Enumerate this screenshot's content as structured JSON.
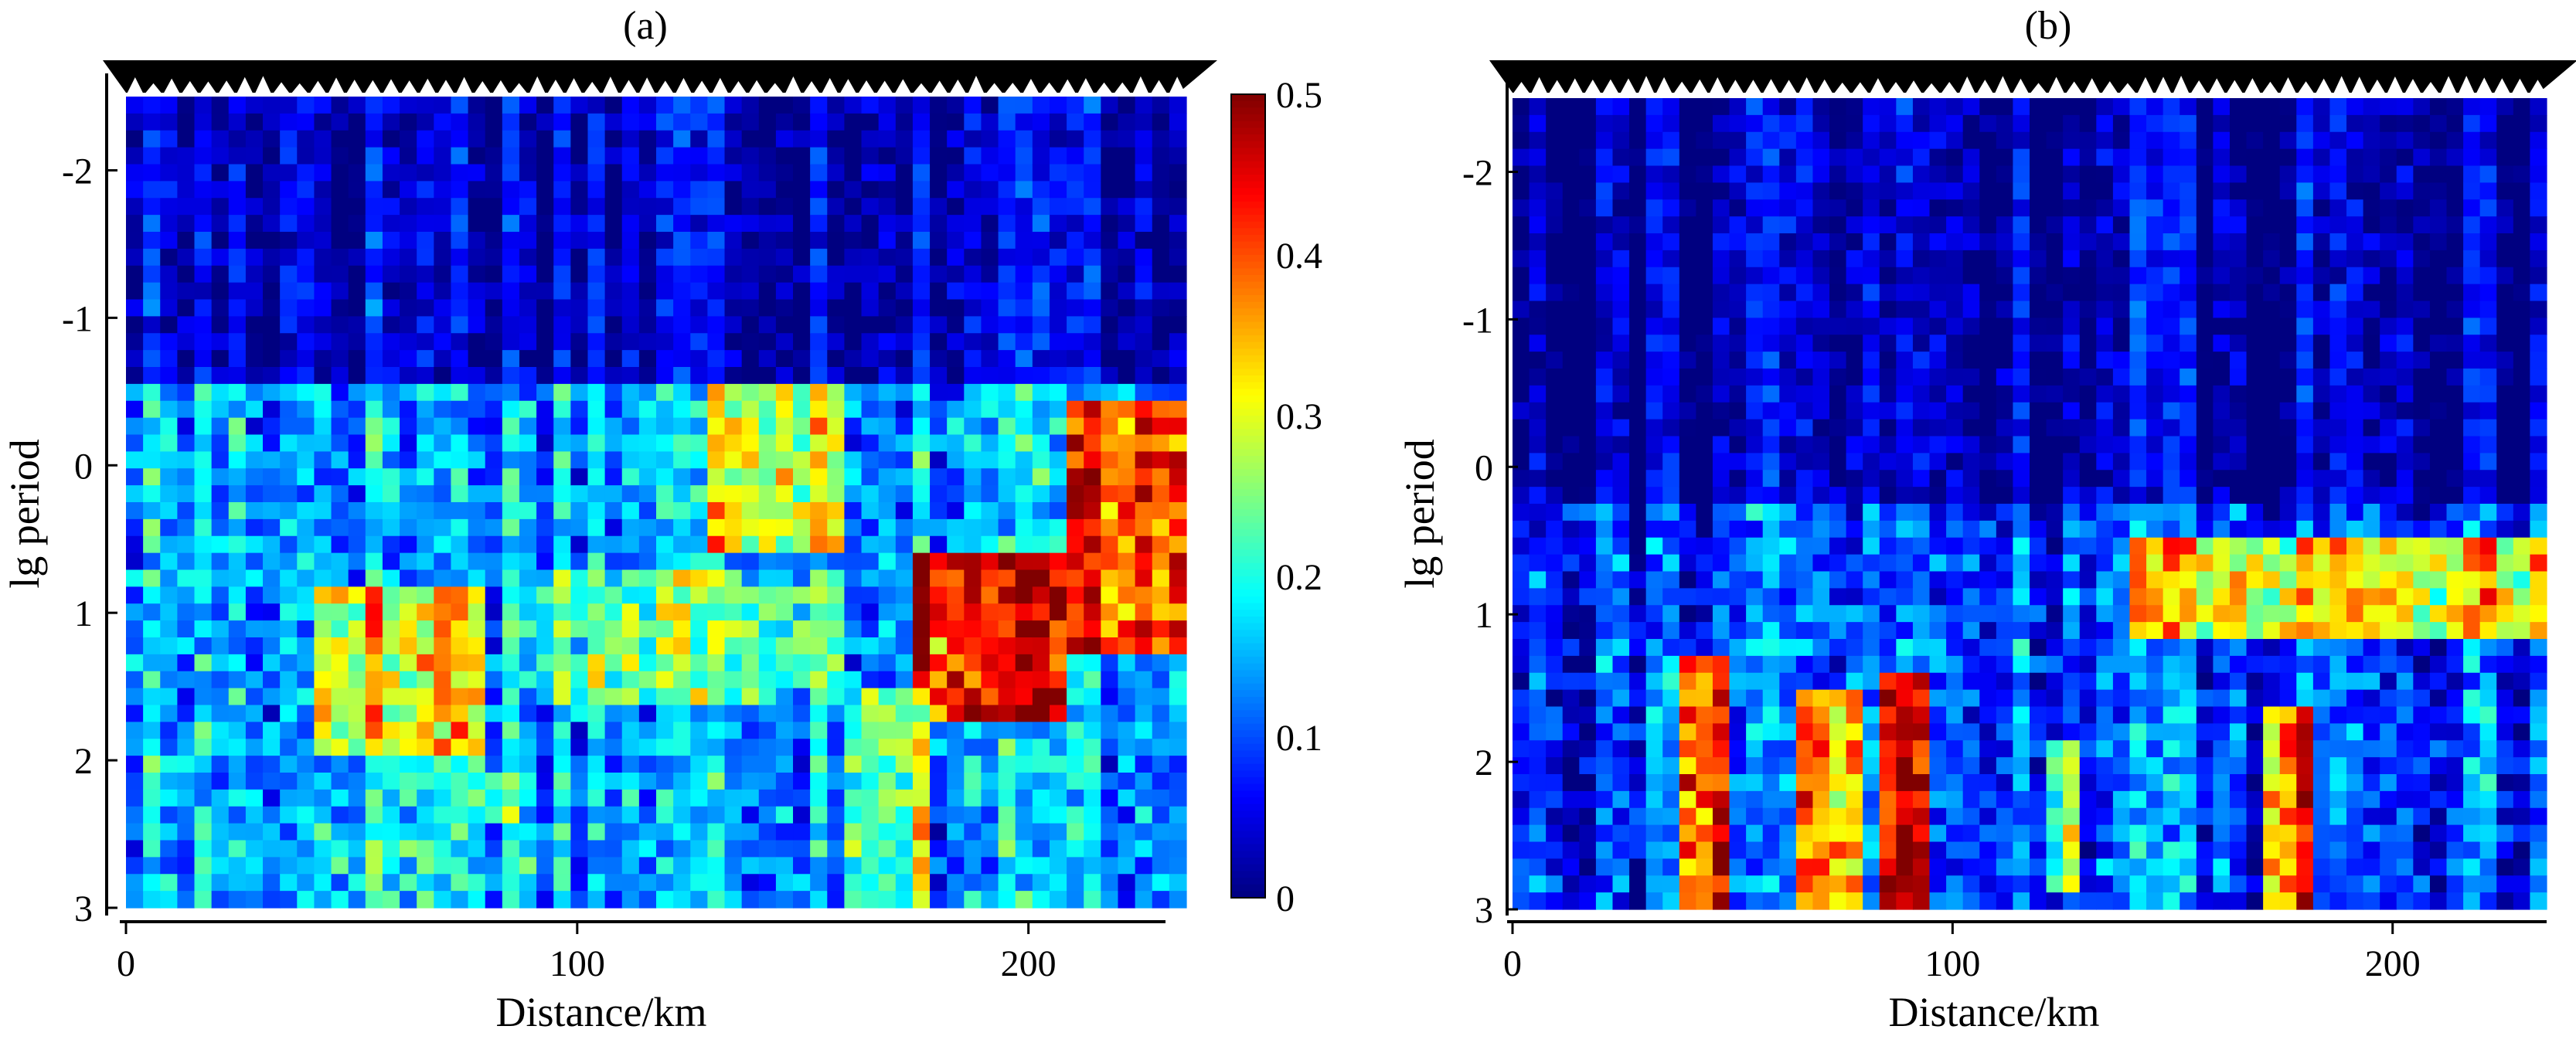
{
  "chart_data": [
    {
      "type": "heatmap",
      "panel_label": "(a)",
      "title": "",
      "xlabel": "Distance/km",
      "ylabel": "lg period",
      "xlim": [
        0,
        235
      ],
      "ylim": [
        -2.5,
        3
      ],
      "x_ticks": [
        0,
        100,
        200
      ],
      "y_ticks": [
        -2,
        -1,
        0,
        1,
        2,
        3
      ],
      "y_axis_inverted": true,
      "grid": false,
      "legend": "colorbar-right",
      "colorbar": {
        "range": [
          0,
          0.5
        ],
        "ticks": [
          0,
          0.1,
          0.2,
          0.3,
          0.4,
          0.5
        ],
        "colormap": "jet"
      },
      "stations_marker": "black-triangles-top",
      "grid_columns": 62,
      "grid_rows": 48,
      "value_features": [
        {
          "x": [
            175,
            210
          ],
          "y": [
            0.6,
            1.7
          ],
          "value": 0.5
        },
        {
          "x": [
            210,
            235
          ],
          "y": [
            -0.4,
            1.3
          ],
          "value": 0.48
        },
        {
          "x": [
            40,
            80
          ],
          "y": [
            0.8,
            2.2
          ],
          "value": 0.38
        },
        {
          "x": [
            130,
            160
          ],
          "y": [
            -0.5,
            0.6
          ],
          "value": 0.38
        },
        {
          "x": [
            160,
            180
          ],
          "y": [
            1.5,
            3.0
          ],
          "value": 0.33
        },
        {
          "x": [
            40,
            90
          ],
          "y": [
            2.0,
            3.0
          ],
          "value": 0.25
        },
        {
          "x": [
            90,
            160
          ],
          "y": [
            0.7,
            1.6
          ],
          "value": 0.3
        },
        {
          "x": [
            0,
            235
          ],
          "y": [
            -2.5,
            -0.6
          ],
          "value": 0.06
        }
      ],
      "value_range_background": [
        0.1,
        0.2
      ]
    },
    {
      "type": "heatmap",
      "panel_label": "(b)",
      "title": "",
      "xlabel": "Distance/km",
      "ylabel": "lg period",
      "xlim": [
        0,
        235
      ],
      "ylim": [
        -2.5,
        3
      ],
      "x_ticks": [
        0,
        100,
        200
      ],
      "y_ticks": [
        -2,
        -1,
        0,
        1,
        2,
        3
      ],
      "y_axis_inverted": true,
      "grid": false,
      "legend": "none",
      "colorbar": {
        "range": [
          0,
          0.5
        ],
        "colormap": "jet"
      },
      "stations_marker": "black-triangles-top",
      "grid_columns": 62,
      "grid_rows": 48,
      "value_features": [
        {
          "x": [
            37,
            48
          ],
          "y": [
            1.3,
            3.0
          ],
          "value": 0.5
        },
        {
          "x": [
            65,
            78
          ],
          "y": [
            1.5,
            3.0
          ],
          "value": 0.42
        },
        {
          "x": [
            82,
            95
          ],
          "y": [
            1.4,
            3.0
          ],
          "value": 0.5
        },
        {
          "x": [
            170,
            182
          ],
          "y": [
            1.6,
            3.0
          ],
          "value": 0.45
        },
        {
          "x": [
            140,
            235
          ],
          "y": [
            0.5,
            1.2
          ],
          "value": 0.38
        },
        {
          "x": [
            120,
            130
          ],
          "y": [
            1.8,
            2.9
          ],
          "value": 0.35
        },
        {
          "x": [
            0,
            235
          ],
          "y": [
            -2.5,
            0.2
          ],
          "value": 0.03
        }
      ],
      "value_range_background": [
        0.05,
        0.15
      ]
    }
  ]
}
